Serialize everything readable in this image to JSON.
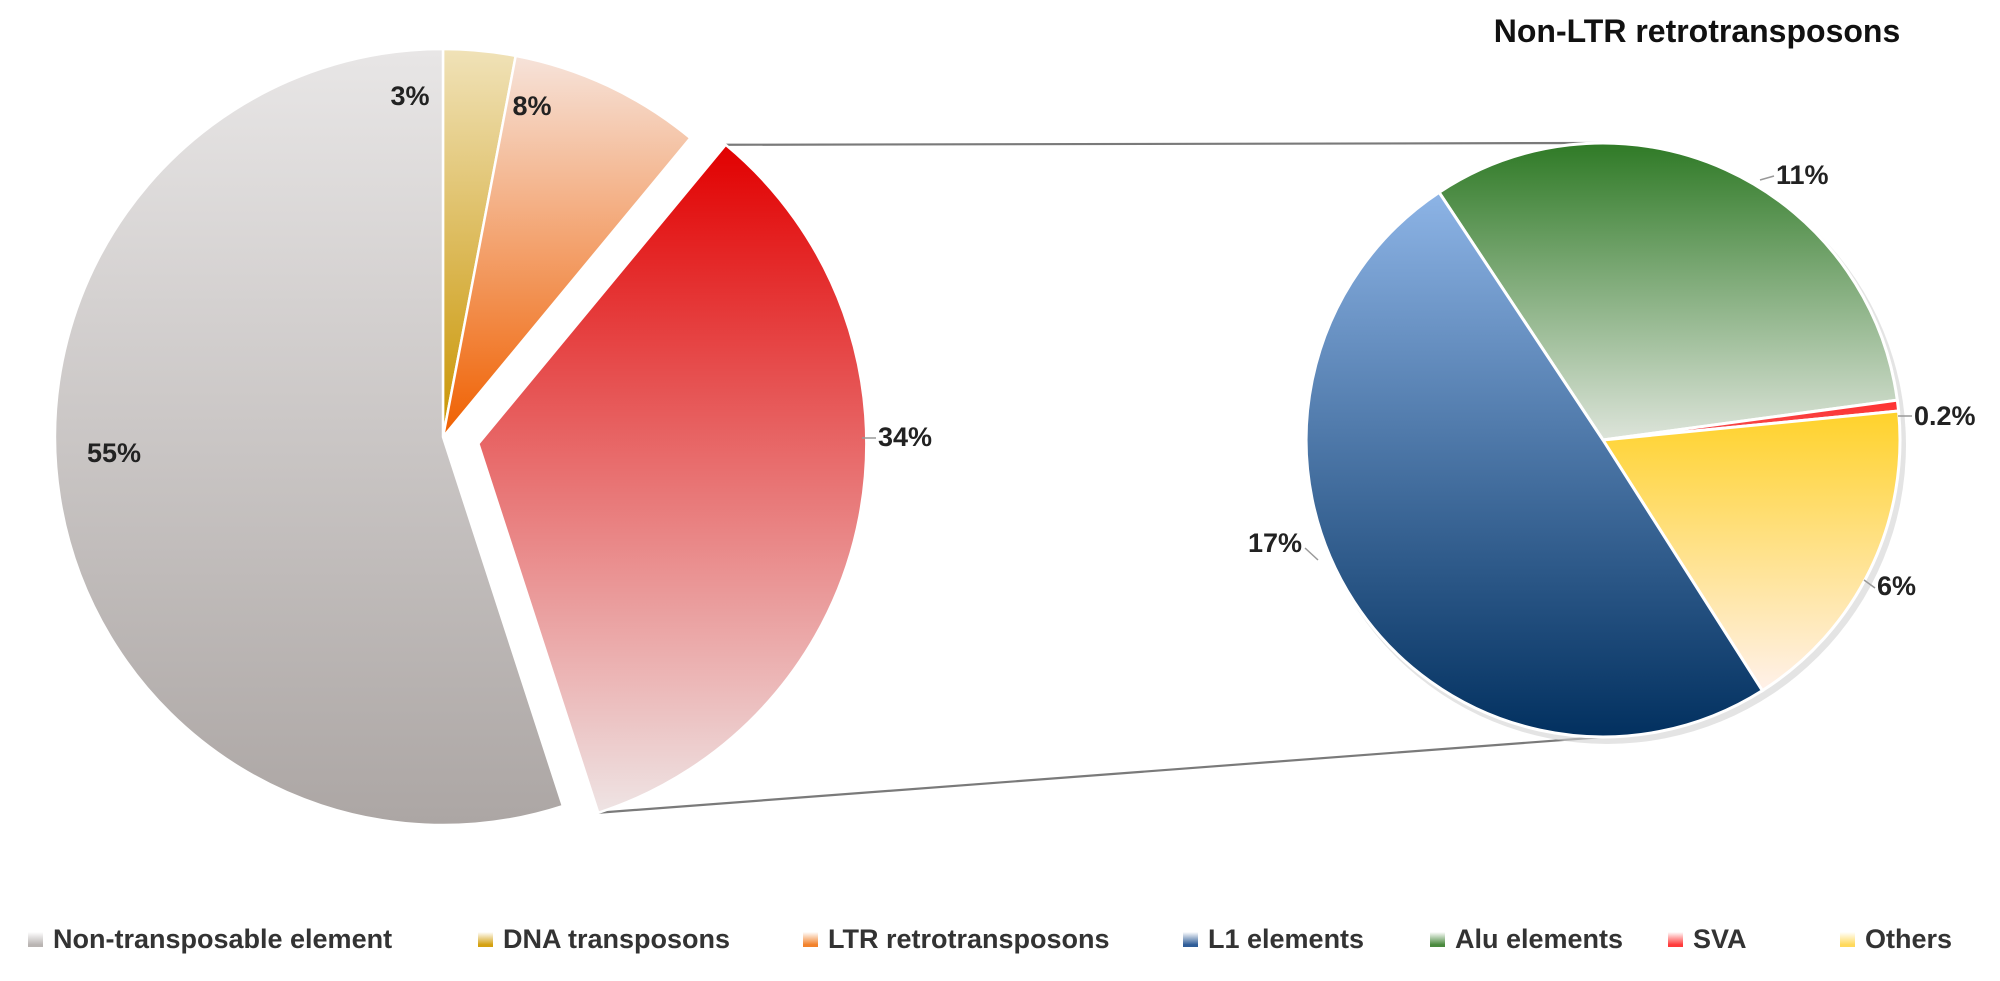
{
  "chart_data": [
    {
      "type": "pie",
      "name": "Main composition",
      "slices": [
        {
          "key": "non_te",
          "label": "Non-transposable element",
          "value": 55,
          "display": "55%",
          "color_top": "#e8e6e6",
          "color_bottom": "#aca6a4",
          "exploded": false
        },
        {
          "key": "dna",
          "label": "DNA transposons",
          "value": 3,
          "display": "3%",
          "color_top": "#f0e2b8",
          "color_bottom": "#c99400",
          "exploded": false
        },
        {
          "key": "ltr",
          "label": "LTR retrotransposons",
          "value": 8,
          "display": "8%",
          "color_top": "#f6e3da",
          "color_bottom": "#f06000",
          "exploded": false
        },
        {
          "key": "nonltr",
          "label": "Non-LTR retrotransposons",
          "value": 34,
          "display": "34%",
          "color_top": "#e20000",
          "color_bottom": "#eee4e4",
          "exploded": true,
          "label_color": "#e00000"
        }
      ]
    },
    {
      "type": "pie",
      "name": "Non-LTR retrotransposons",
      "title": "Non-LTR retrotransposons",
      "slices": [
        {
          "key": "alu",
          "label": "Alu elements",
          "value": 11,
          "display": "11%",
          "color_top": "#2f7a26",
          "color_bottom": "#dde4da"
        },
        {
          "key": "sva",
          "label": "SVA",
          "value": 0.2,
          "display": "0.2%",
          "color_top": "#ff3030",
          "color_bottom": "#f25050"
        },
        {
          "key": "others",
          "label": "Others",
          "value": 6,
          "display": "6%",
          "color_top": "#ffd22a",
          "color_bottom": "#fff1ea"
        },
        {
          "key": "l1",
          "label": "L1 elements",
          "value": 17,
          "display": "17%",
          "color_top": "#8db4e6",
          "color_bottom": "#02305f"
        }
      ]
    }
  ],
  "legend": [
    {
      "key": "non_te",
      "label": "Non-transposable element",
      "color": "#b9b4b2"
    },
    {
      "key": "dna",
      "label": "DNA transposons",
      "color": "#d4a111"
    },
    {
      "key": "ltr",
      "label": "LTR retrotransposons",
      "color": "#f2822c"
    },
    {
      "key": "l1",
      "label": "L1 elements",
      "color": "#2f5d98"
    },
    {
      "key": "alu",
      "label": "Alu elements",
      "color": "#4a8a3e"
    },
    {
      "key": "sva",
      "label": "SVA",
      "color": "#ff3b3b"
    },
    {
      "key": "others",
      "label": "Others",
      "color": "#ffd95c"
    }
  ]
}
